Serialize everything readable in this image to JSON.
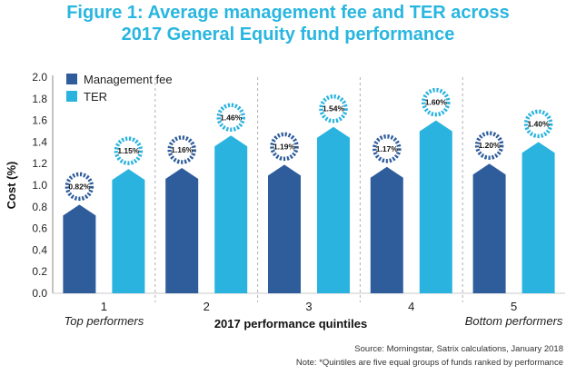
{
  "title_line1": "Figure 1: Average management fee and TER across",
  "title_line2": "2017 General Equity fund performance",
  "source": "Source: Morningstar, Satrix calculations, January 2018",
  "note": "Note: *Quintiles are five equal groups of funds ranked by performance",
  "colors": {
    "mgmt": "#2f5d9c",
    "ter": "#2ab3df",
    "title": "#29b6e0"
  },
  "chart_data": {
    "type": "bar",
    "xlabel": "2017 performance quintiles",
    "ylabel": "Cost (%)",
    "ylim": [
      0.0,
      2.0
    ],
    "yticks": [
      "0.0",
      "0.2",
      "0.4",
      "0.6",
      "0.8",
      "1.0",
      "1.2",
      "1.4",
      "1.6",
      "1.8",
      "2.0"
    ],
    "categories": [
      "1",
      "2",
      "3",
      "4",
      "5"
    ],
    "category_sublabels": [
      "Top performers",
      "",
      "",
      "",
      "Bottom performers"
    ],
    "legend_position": "top-left",
    "grid": false,
    "series": [
      {
        "name": "Management fee",
        "values": [
          0.82,
          1.16,
          1.19,
          1.17,
          1.2
        ],
        "labels": [
          "0.82%",
          "1.16%",
          "1.19%",
          "1.17%",
          "1.20%"
        ]
      },
      {
        "name": "TER",
        "values": [
          1.15,
          1.46,
          1.54,
          1.6,
          1.4
        ],
        "labels": [
          "1.15%",
          "1.46%",
          "1.54%",
          "1.60%",
          "1.40%"
        ]
      }
    ]
  }
}
